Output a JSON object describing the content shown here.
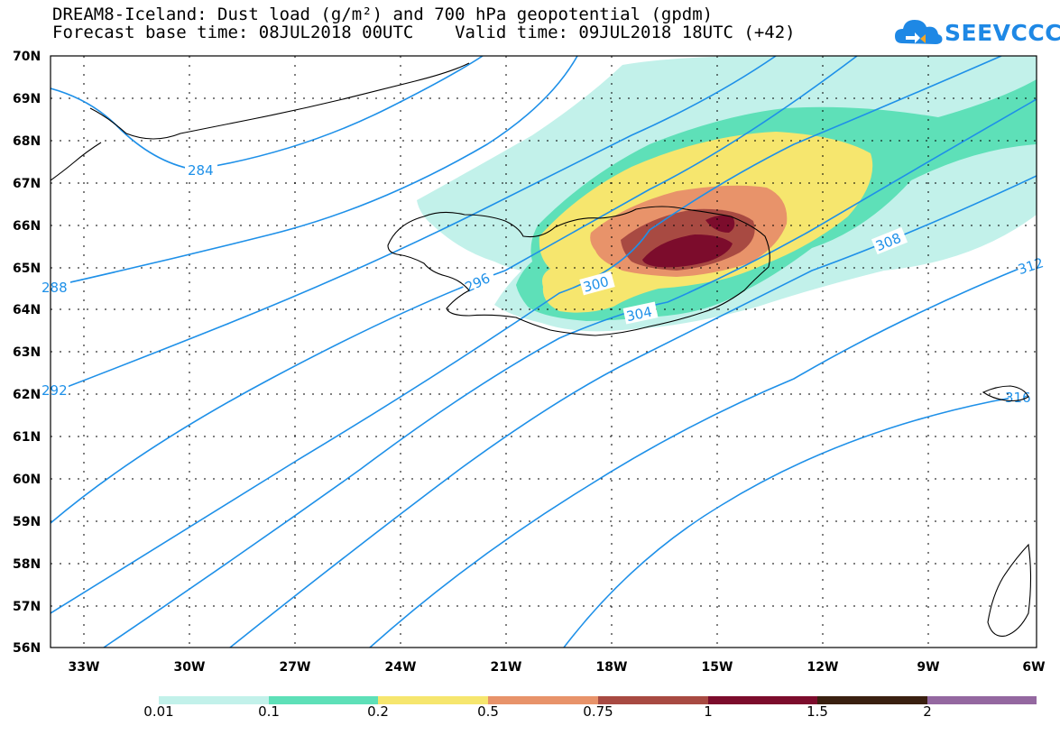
{
  "title": {
    "line1": "DREAM8-Iceland: Dust load (g/m²) and 700 hPa geopotential (gpdm)",
    "line2": "Forecast base time: 08JUL2018 00UTC    Valid time: 09JUL2018 18UTC (+42)"
  },
  "logo": {
    "text": "SEEVCCC",
    "icon": "cloud-icon"
  },
  "map": {
    "lat_labels": [
      "70N",
      "69N",
      "68N",
      "67N",
      "66N",
      "65N",
      "64N",
      "63N",
      "62N",
      "61N",
      "60N",
      "59N",
      "58N",
      "57N",
      "56N"
    ],
    "lon_labels": [
      "33W",
      "30W",
      "27W",
      "24W",
      "21W",
      "18W",
      "15W",
      "12W",
      "9W",
      "6W"
    ],
    "contour_labels": [
      "284",
      "288",
      "292",
      "296",
      "300",
      "304",
      "308",
      "312",
      "316"
    ],
    "contour_color": "#1e90e8",
    "coast_color": "#000000"
  },
  "colorbar": {
    "labels": [
      "0.01",
      "0.1",
      "0.2",
      "0.5",
      "0.75",
      "1",
      "1.5",
      "2"
    ],
    "colors": [
      "#c2f1ea",
      "#5ee0b8",
      "#f6e66e",
      "#e8936a",
      "#a84a42",
      "#7c0c2c",
      "#3a2010",
      "#9468a0"
    ]
  }
}
